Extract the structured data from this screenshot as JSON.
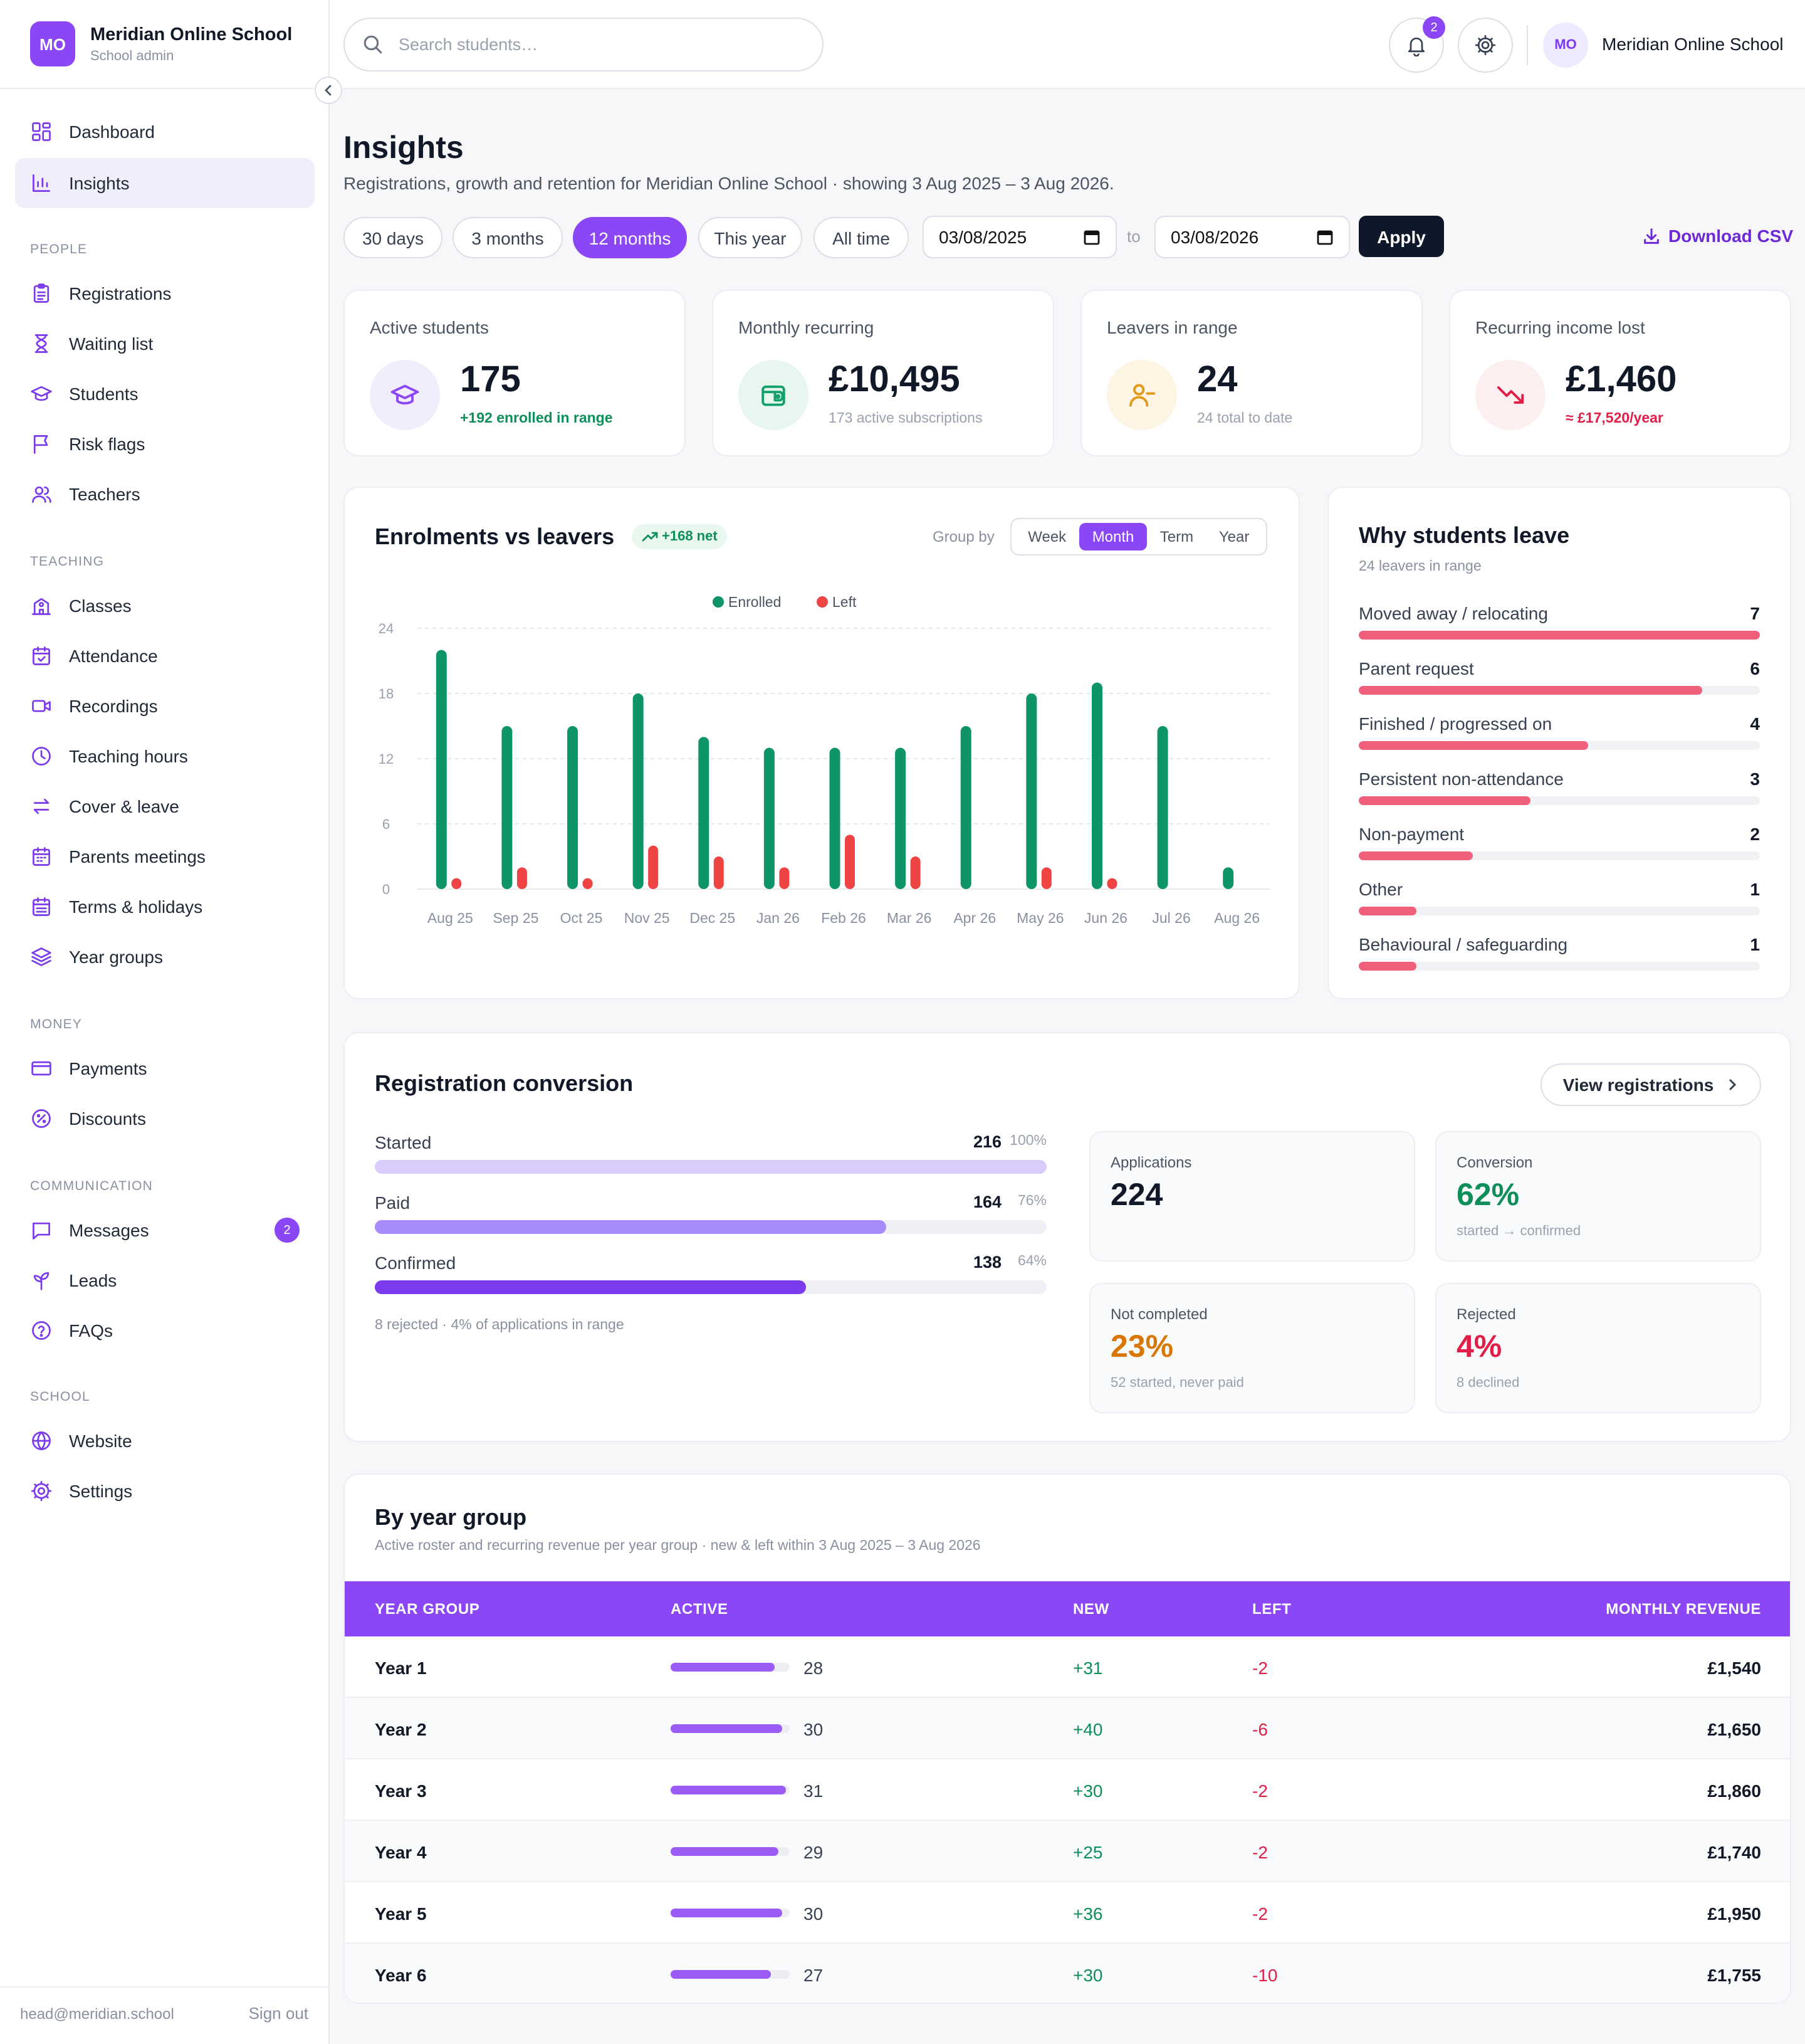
{
  "brand": {
    "logo": "MO",
    "name": "Meridian Online School",
    "role": "School admin"
  },
  "sidebar": {
    "top": [
      {
        "label": "Dashboard",
        "icon": "dashboard-icon"
      },
      {
        "label": "Insights",
        "icon": "chart-icon",
        "active": true
      }
    ],
    "sections": [
      {
        "title": "PEOPLE",
        "items": [
          "Registrations",
          "Waiting list",
          "Students",
          "Risk flags",
          "Teachers"
        ]
      },
      {
        "title": "TEACHING",
        "items": [
          "Classes",
          "Attendance",
          "Recordings",
          "Teaching hours",
          "Cover & leave",
          "Parents meetings",
          "Terms & holidays",
          "Year groups"
        ]
      },
      {
        "title": "MONEY",
        "items": [
          "Payments",
          "Discounts"
        ]
      },
      {
        "title": "COMMUNICATION",
        "items": [
          "Messages",
          "Leads",
          "FAQs"
        ]
      },
      {
        "title": "SCHOOL",
        "items": [
          "Website",
          "Settings"
        ]
      }
    ],
    "messages_badge": "2",
    "footer_email": "head@meridian.school",
    "sign_out": "Sign out"
  },
  "topbar": {
    "search_placeholder": "Search students…",
    "notifications": "2",
    "avatar": "MO",
    "user_name": "Meridian Online School"
  },
  "page": {
    "title": "Insights",
    "subtitle": "Registrations, growth and retention for Meridian Online School · showing 3 Aug 2025 – 3 Aug 2026."
  },
  "filters": {
    "ranges": [
      "30 days",
      "3 months",
      "12 months",
      "This year",
      "All time"
    ],
    "active_range": "12 months",
    "from": "03/08/2025",
    "to_label": "to",
    "to": "03/08/2026",
    "apply": "Apply",
    "download": "Download CSV"
  },
  "kpis": [
    {
      "label": "Active students",
      "value": "175",
      "sub": "+192 enrolled in range",
      "sub_color": "#0e8f5a",
      "icon": "graduation-cap-icon",
      "bg": "#f1edfd",
      "fg": "#8b47f5"
    },
    {
      "label": "Monthly recurring",
      "value": "£10,495",
      "sub": "173 active subscriptions",
      "sub_color": "#9aa0ad",
      "icon": "wallet-icon",
      "bg": "#e7f7ef",
      "fg": "#12a06b"
    },
    {
      "label": "Leavers in range",
      "value": "24",
      "sub": "24 total to date",
      "sub_color": "#9aa0ad",
      "icon": "user-minus-icon",
      "bg": "#fdf4e3",
      "fg": "#e39a1a"
    },
    {
      "label": "Recurring income lost",
      "value": "£1,460",
      "sub": "≈ £17,520/year",
      "sub_color": "#e11d48",
      "icon": "trending-down-icon",
      "bg": "#fdeef0",
      "fg": "#e11d48"
    }
  ],
  "enrolments": {
    "title": "Enrolments vs leavers",
    "net": "+168 net",
    "group_by_label": "Group by",
    "group_options": [
      "Week",
      "Month",
      "Term",
      "Year"
    ],
    "group_active": "Month"
  },
  "chart_data": {
    "type": "bar",
    "categories": [
      "Aug 25",
      "Sep 25",
      "Oct 25",
      "Nov 25",
      "Dec 25",
      "Jan 26",
      "Feb 26",
      "Mar 26",
      "Apr 26",
      "May 26",
      "Jun 26",
      "Jul 26",
      "Aug 26"
    ],
    "series": [
      {
        "name": "Enrolled",
        "color": "#0d9467",
        "values": [
          22,
          15,
          15,
          18,
          14,
          13,
          13,
          13,
          15,
          18,
          19,
          15,
          2
        ]
      },
      {
        "name": "Left",
        "color": "#ef4444",
        "values": [
          1,
          2,
          1,
          4,
          3,
          2,
          5,
          3,
          0,
          2,
          1,
          0,
          0
        ]
      }
    ],
    "yticks": [
      0,
      6,
      12,
      18,
      24
    ],
    "ylim": [
      0,
      24
    ],
    "legend": "top-center",
    "grid": true
  },
  "reasons": {
    "title": "Why students leave",
    "sub": "24 leavers in range",
    "max": 7,
    "items": [
      {
        "label": "Moved away / relocating",
        "count": 7
      },
      {
        "label": "Parent request",
        "count": 6
      },
      {
        "label": "Finished / progressed on",
        "count": 4
      },
      {
        "label": "Persistent non-attendance",
        "count": 3
      },
      {
        "label": "Non-payment",
        "count": 2
      },
      {
        "label": "Other",
        "count": 1
      },
      {
        "label": "Behavioural / safeguarding",
        "count": 1
      }
    ]
  },
  "conversion": {
    "title": "Registration conversion",
    "view_button": "View registrations",
    "funnel": [
      {
        "label": "Started",
        "value": "216",
        "pct": "100%",
        "fraction": 1.0,
        "color": "#d9ccfb"
      },
      {
        "label": "Paid",
        "value": "164",
        "pct": "76%",
        "fraction": 0.76,
        "color": "#a78bfa"
      },
      {
        "label": "Confirmed",
        "value": "138",
        "pct": "64%",
        "fraction": 0.64,
        "color": "#7c3aed"
      }
    ],
    "note": "8 rejected · 4% of applications in range",
    "stats": [
      {
        "label": "Applications",
        "value": "224",
        "sub": "",
        "color": "#111827"
      },
      {
        "label": "Conversion",
        "value": "62%",
        "sub": "started → confirmed",
        "color": "#0e8f5a"
      },
      {
        "label": "Not completed",
        "value": "23%",
        "sub": "52 started, never paid",
        "color": "#d97706"
      },
      {
        "label": "Rejected",
        "value": "4%",
        "sub": "8 declined",
        "color": "#e11d48"
      }
    ]
  },
  "year_groups": {
    "title": "By year group",
    "sub": "Active roster and recurring revenue per year group · new & left within 3 Aug 2025 – 3 Aug 2026",
    "headers": [
      "YEAR GROUP",
      "ACTIVE",
      "NEW",
      "LEFT",
      "MONTHLY REVENUE"
    ],
    "active_max": 32,
    "rows": [
      {
        "name": "Year 1",
        "active": "28",
        "new": "+31",
        "left": "-2",
        "revenue": "£1,540"
      },
      {
        "name": "Year 2",
        "active": "30",
        "new": "+40",
        "left": "-6",
        "revenue": "£1,650"
      },
      {
        "name": "Year 3",
        "active": "31",
        "new": "+30",
        "left": "-2",
        "revenue": "£1,860"
      },
      {
        "name": "Year 4",
        "active": "29",
        "new": "+25",
        "left": "-2",
        "revenue": "£1,740"
      },
      {
        "name": "Year 5",
        "active": "30",
        "new": "+36",
        "left": "-2",
        "revenue": "£1,950"
      },
      {
        "name": "Year 6",
        "active": "27",
        "new": "+30",
        "left": "-10",
        "revenue": "£1,755"
      }
    ]
  }
}
